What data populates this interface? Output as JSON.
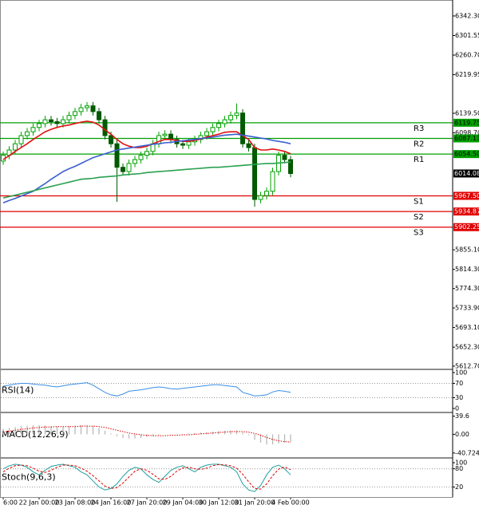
{
  "chart_data": [
    {
      "type": "candlestick",
      "categories": [
        "6:00",
        null,
        null,
        null,
        null,
        null,
        "22 Jan 00:00",
        null,
        null,
        null,
        null,
        null,
        "23 Jan 08:00",
        null,
        null,
        null,
        null,
        null,
        "24 Jan 16:00",
        null,
        null,
        null,
        null,
        null,
        "27 Jan 20:00",
        null,
        null,
        null,
        null,
        null,
        "29 Jan 04:00",
        null,
        null,
        null,
        null,
        null,
        "30 Jan 12:00",
        null,
        null,
        null,
        null,
        null,
        "31 Jan 20:00",
        null,
        null,
        null,
        null,
        null,
        "4 Feb 00:00"
      ],
      "open": [
        6040,
        6052,
        6063,
        6076,
        6093,
        6101,
        6110,
        6118,
        6126,
        6122,
        6118,
        6126,
        6135,
        6143,
        6151,
        6155,
        6143,
        6126,
        6093,
        6076,
        6027,
        6018,
        6035,
        6043,
        6052,
        6060,
        6076,
        6093,
        6096,
        6085,
        6076,
        6073,
        6080,
        6085,
        6093,
        6101,
        6110,
        6118,
        6126,
        6135,
        6140,
        6076,
        6068,
        5960,
        5968,
        5977,
        6018,
        6052,
        6043
      ],
      "high": [
        6060,
        6071,
        6084,
        6101,
        6109,
        6118,
        6126,
        6134,
        6134,
        6130,
        6134,
        6143,
        6151,
        6159,
        6163,
        6163,
        6151,
        6134,
        6101,
        6084,
        6035,
        6043,
        6051,
        6060,
        6068,
        6084,
        6101,
        6104,
        6104,
        6093,
        6084,
        6088,
        6093,
        6101,
        6109,
        6118,
        6126,
        6134,
        6143,
        6160,
        6148,
        6084,
        6076,
        5976,
        5985,
        6026,
        6060,
        6060,
        6051
      ],
      "low": [
        6032,
        6044,
        6055,
        6068,
        6085,
        6093,
        6102,
        6110,
        6114,
        6110,
        6110,
        6118,
        6127,
        6135,
        6143,
        6135,
        6118,
        6085,
        6068,
        5955,
        6010,
        6010,
        6027,
        6035,
        6044,
        6052,
        6068,
        6085,
        6077,
        6068,
        6065,
        6065,
        6072,
        6077,
        6085,
        6093,
        6102,
        6110,
        6118,
        6127,
        6068,
        6060,
        5945,
        5952,
        5960,
        5969,
        6010,
        6035,
        6006
      ],
      "close": [
        6052,
        6063,
        6076,
        6093,
        6101,
        6110,
        6118,
        6126,
        6122,
        6118,
        6126,
        6135,
        6143,
        6151,
        6155,
        6143,
        6126,
        6093,
        6076,
        6027,
        6018,
        6035,
        6043,
        6052,
        6060,
        6076,
        6093,
        6096,
        6085,
        6076,
        6073,
        6080,
        6085,
        6093,
        6101,
        6110,
        6118,
        6126,
        6135,
        6140,
        6076,
        6068,
        5960,
        5968,
        5977,
        6018,
        6052,
        6043,
        6014
      ],
      "up_color": "#00a000",
      "down_color": "#005a00",
      "series": [
        {
          "color": "#e01010",
          "values": [
            6043,
            6051,
            6060,
            6068,
            6076,
            6085,
            6093,
            6101,
            6106,
            6110,
            6113,
            6115,
            6118,
            6121,
            6123,
            6121,
            6115,
            6105,
            6096,
            6085,
            6076,
            6071,
            6068,
            6068,
            6071,
            6076,
            6081,
            6085,
            6085,
            6083,
            6081,
            6081,
            6083,
            6086,
            6090,
            6093,
            6096,
            6100,
            6101,
            6101,
            6093,
            6085,
            6068,
            6063,
            6063,
            6065,
            6063,
            6060,
            6055
          ]
        },
        {
          "color": "#3a5fd0",
          "values": [
            5953,
            5958,
            5962,
            5967,
            5972,
            5977,
            5985,
            5993,
            6002,
            6010,
            6018,
            6024,
            6029,
            6035,
            6041,
            6047,
            6051,
            6055,
            6059,
            6063,
            6065,
            6067,
            6069,
            6071,
            6073,
            6075,
            6076,
            6078,
            6079,
            6081,
            6082,
            6084,
            6085,
            6087,
            6088,
            6090,
            6092,
            6094,
            6095,
            6096,
            6094,
            6092,
            6090,
            6088,
            6086,
            6083,
            6081,
            6079,
            6076
          ]
        },
        {
          "color": "#2aa050",
          "values": [
            5963,
            5966,
            5969,
            5972,
            5975,
            5978,
            5981,
            5984,
            5987,
            5990,
            5993,
            5996,
            5999,
            6002,
            6003,
            6004,
            6006,
            6007,
            6008,
            6009,
            6011,
            6012,
            6013,
            6014,
            6016,
            6017,
            6018,
            6019,
            6020,
            6021,
            6022,
            6023,
            6024,
            6025,
            6026,
            6027,
            6027,
            6028,
            6029,
            6030,
            6031,
            6032,
            6033,
            6034,
            6035,
            6035,
            6036,
            6037,
            6038
          ]
        }
      ],
      "levels": [
        {
          "name": "R3",
          "value": 6119.75,
          "label": "6119.75",
          "color": "#00a000"
        },
        {
          "name": "R2",
          "value": 6087.13,
          "label": "6087.13",
          "color": "#00a000"
        },
        {
          "name": "R1",
          "value": 6054.5,
          "label": "6054.50",
          "color": "#00a000"
        },
        {
          "name": "S1",
          "value": 5967.5,
          "label": "5967.50",
          "color": "#e00000"
        },
        {
          "name": "S2",
          "value": 5934.87,
          "label": "5934.87",
          "color": "#e00000"
        },
        {
          "name": "S3",
          "value": 5902.25,
          "label": "5902.25",
          "color": "#e00000"
        }
      ],
      "current_price": {
        "value": 6014.08,
        "label": "6014.08"
      },
      "ylim": [
        5607.6,
        6375.5
      ],
      "yticks": [
        {
          "value": 6342.3,
          "label": "6342.30"
        },
        {
          "value": 6301.55,
          "label": "6301.55"
        },
        {
          "value": 6260.7,
          "label": "6260.70"
        },
        {
          "value": 6219.95,
          "label": "6219.95"
        },
        {
          "value": 6139.5,
          "label": "6139.50"
        },
        {
          "value": 6098.7,
          "label": "6098.70"
        },
        {
          "value": 5855.1,
          "label": "5855.10"
        },
        {
          "value": 5814.3,
          "label": "5814.30"
        },
        {
          "value": 5774.3,
          "label": "5774.30"
        },
        {
          "value": 5733.9,
          "label": "5733.90"
        },
        {
          "value": 5693.1,
          "label": "5693.10"
        },
        {
          "value": 5652.3,
          "label": "5652.30"
        },
        {
          "value": 5612.7,
          "label": "5612.70"
        }
      ]
    },
    {
      "type": "line",
      "title": "RSI(14)",
      "series": [
        {
          "color": "#3a8ee6",
          "values": [
            62,
            65,
            68,
            70,
            70,
            68,
            66,
            65,
            62,
            60,
            63,
            66,
            68,
            70,
            72,
            65,
            55,
            45,
            38,
            35,
            40,
            48,
            50,
            52,
            55,
            58,
            60,
            58,
            55,
            54,
            56,
            58,
            60,
            62,
            64,
            66,
            66,
            64,
            62,
            60,
            45,
            40,
            35,
            36,
            38,
            46,
            50,
            48,
            45
          ]
        }
      ],
      "ylim": [
        0,
        100
      ],
      "yticks": [
        100,
        70,
        30,
        0
      ],
      "grid": true
    },
    {
      "type": "combo",
      "title": "MACD(12,26,9)",
      "series": [
        {
          "style": "bar",
          "color": "#b4b4b4",
          "values": [
            12,
            14,
            16,
            18,
            19,
            20,
            20,
            19,
            18,
            17,
            17,
            18,
            19,
            20,
            20,
            18,
            14,
            8,
            2,
            -4,
            -8,
            -9,
            -9,
            -8,
            -6,
            -4,
            -2,
            0,
            1,
            1,
            1,
            2,
            3,
            4,
            5,
            6,
            7,
            8,
            8,
            9,
            4,
            -2,
            -12,
            -18,
            -22,
            -22,
            -20,
            -18,
            -17
          ]
        },
        {
          "style": "dotted",
          "color": "#e00000",
          "values": [
            5,
            7,
            9,
            11,
            12,
            14,
            15,
            16,
            16,
            17,
            17,
            17,
            17,
            18,
            18,
            18,
            17,
            15,
            12,
            9,
            6,
            3,
            1,
            -1,
            -2,
            -3,
            -3,
            -3,
            -2,
            -2,
            -1,
            -1,
            0,
            1,
            2,
            3,
            4,
            5,
            6,
            6,
            6,
            5,
            2,
            -2,
            -7,
            -11,
            -14,
            -16,
            -17
          ]
        }
      ],
      "ylim": [
        -48,
        46
      ],
      "yticks": [
        39.6,
        {
          "value": 0,
          "label": "0.00"
        },
        -40.724
      ],
      "grid": false
    },
    {
      "type": "line",
      "title": "Stoch(9,6,3)",
      "series": [
        {
          "color": "#20a0a0",
          "values": [
            80,
            90,
            95,
            92,
            85,
            70,
            60,
            75,
            88,
            92,
            95,
            90,
            85,
            70,
            60,
            40,
            20,
            10,
            15,
            30,
            55,
            75,
            85,
            80,
            60,
            45,
            35,
            55,
            75,
            85,
            90,
            80,
            70,
            85,
            92,
            95,
            95,
            90,
            85,
            70,
            30,
            10,
            5,
            25,
            60,
            85,
            92,
            80,
            60
          ]
        },
        {
          "style": "dashed",
          "color": "#e00000",
          "values": [
            70,
            82,
            90,
            92,
            90,
            82,
            72,
            68,
            75,
            85,
            92,
            92,
            90,
            82,
            72,
            57,
            40,
            23,
            15,
            18,
            33,
            53,
            72,
            80,
            75,
            62,
            47,
            45,
            55,
            72,
            83,
            85,
            80,
            78,
            82,
            90,
            94,
            93,
            90,
            82,
            62,
            37,
            15,
            13,
            30,
            57,
            79,
            86,
            77
          ]
        }
      ],
      "ylim": [
        0,
        100
      ],
      "yticks": [
        100,
        80,
        20
      ],
      "grid": true
    }
  ]
}
